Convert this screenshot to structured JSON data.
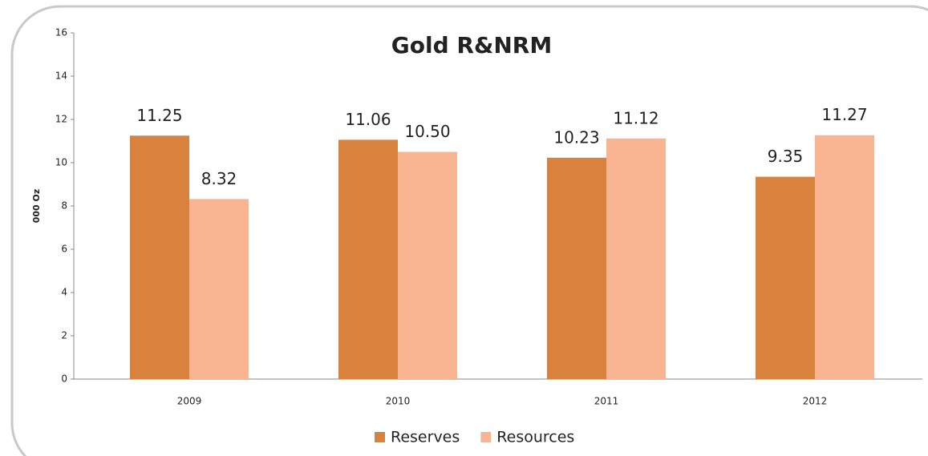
{
  "chart_data": {
    "type": "bar",
    "title": "Gold R&NRM",
    "y_label": "000 Oz",
    "categories": [
      "2009",
      "2010",
      "2011",
      "2012"
    ],
    "series": [
      {
        "name": "Reserves",
        "color": "#d9823e",
        "values": [
          11.25,
          11.06,
          10.23,
          9.35
        ],
        "value_labels": [
          "11.25",
          "11.06",
          "10.23",
          "9.35"
        ]
      },
      {
        "name": "Resources",
        "color": "#f9b591",
        "values": [
          8.32,
          10.5,
          11.12,
          11.27
        ],
        "value_labels": [
          "8.32",
          "10.50",
          "11.12",
          "11.27"
        ]
      }
    ],
    "ylim": [
      0,
      16
    ],
    "yticks": [
      0,
      2,
      4,
      6,
      8,
      10,
      12,
      14,
      16
    ],
    "grid": false,
    "legend": "bottom"
  }
}
